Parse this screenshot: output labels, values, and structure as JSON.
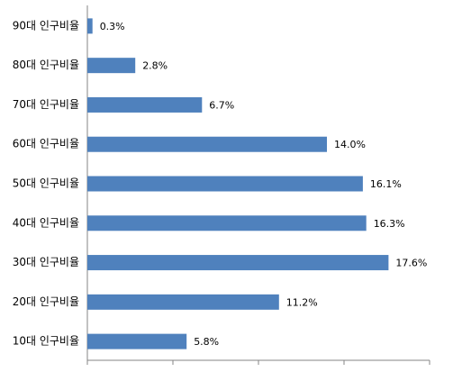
{
  "chart_data": {
    "type": "bar",
    "orientation": "horizontal",
    "categories": [
      "90대 인구비율",
      "80대 인구비율",
      "70대 인구비율",
      "60대 인구비율",
      "50대 인구비율",
      "40대 인구비율",
      "30대 인구비율",
      "20대 인구비율",
      "10대 인구비율"
    ],
    "values": [
      0.3,
      2.8,
      6.7,
      14.0,
      16.1,
      16.3,
      17.6,
      11.2,
      5.8
    ],
    "value_labels": [
      "0.3%",
      "2.8%",
      "6.7%",
      "14.0%",
      "16.1%",
      "16.3%",
      "17.6%",
      "11.2%",
      "5.8%"
    ],
    "color": "#4f81bd",
    "xlim": [
      0,
      20
    ],
    "xticks": [
      0,
      5,
      10,
      15,
      20
    ]
  }
}
